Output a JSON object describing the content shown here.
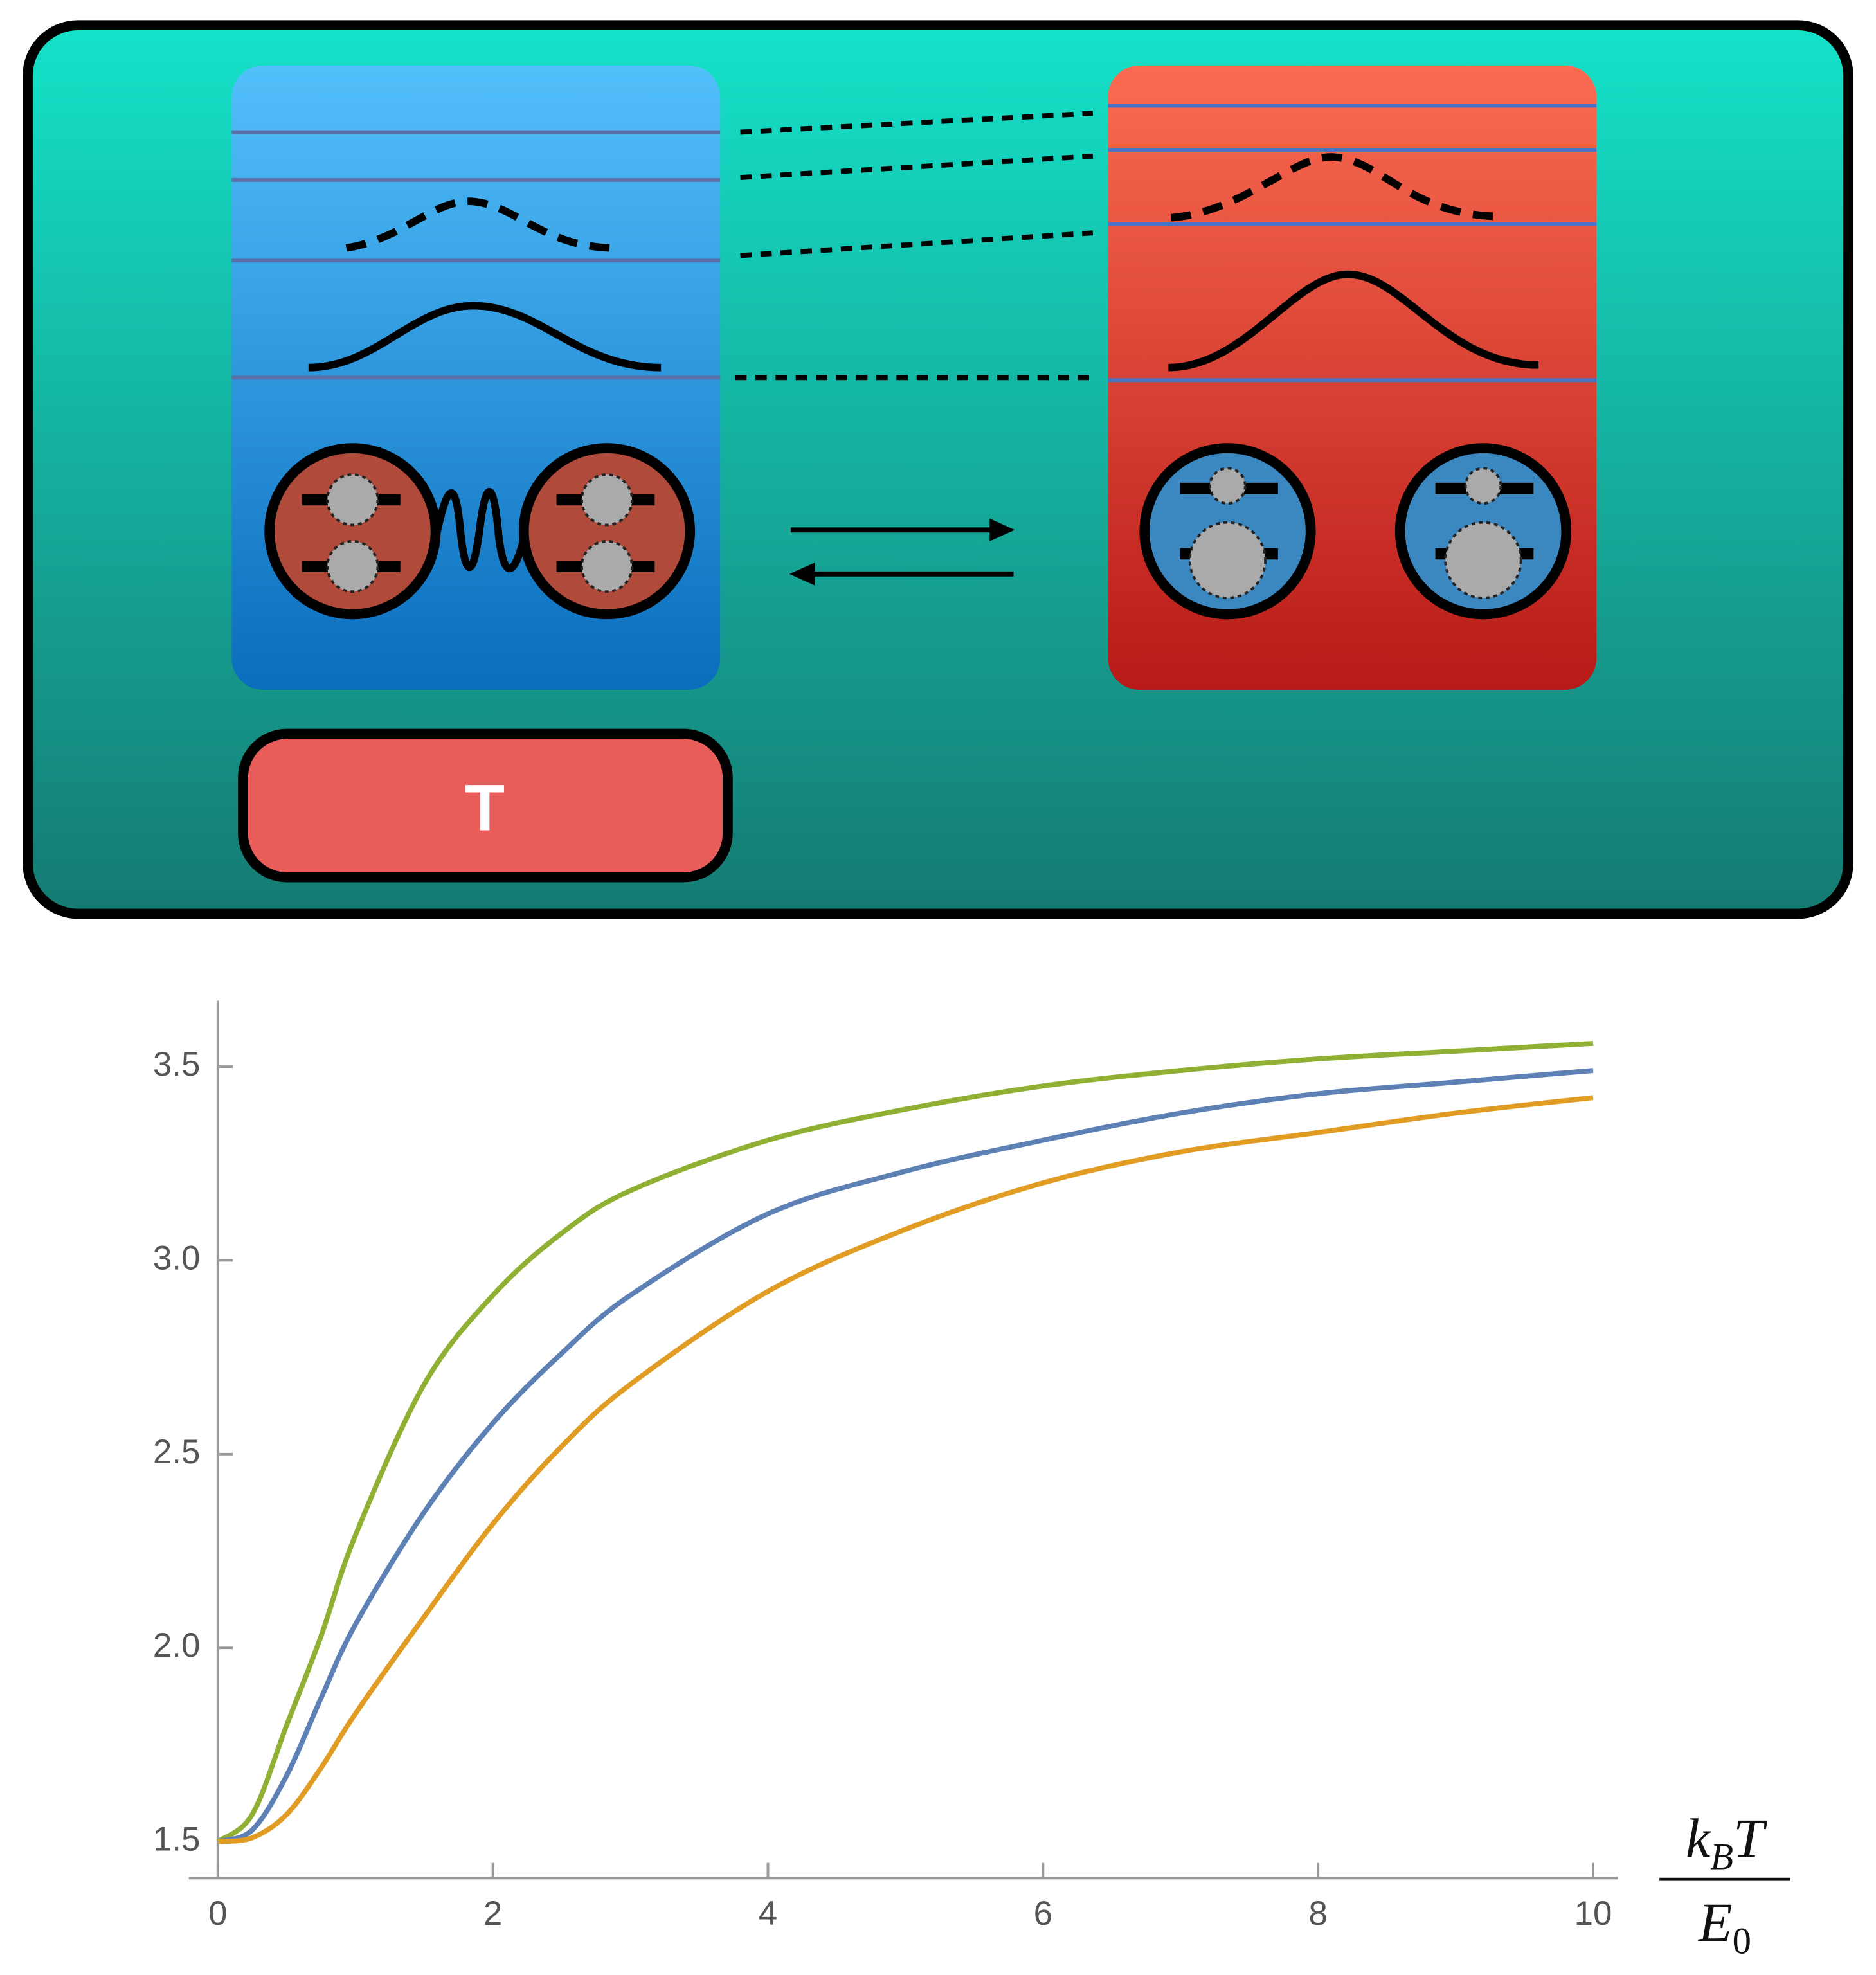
{
  "diagram": {
    "button_label": "T"
  },
  "chart_data": {
    "type": "line",
    "x_label": {
      "numerator": [
        "k",
        "B",
        "T"
      ],
      "denominator": [
        "E",
        "0"
      ]
    },
    "x": [
      0,
      0.25,
      0.5,
      0.75,
      1,
      1.5,
      2,
      2.5,
      3,
      4,
      5,
      6,
      7,
      8,
      9,
      10
    ],
    "series": [
      {
        "color": "#8fb032",
        "values": [
          1.5,
          1.57,
          1.8,
          2.03,
          2.29,
          2.68,
          2.91,
          3.07,
          3.18,
          3.31,
          3.39,
          3.45,
          3.49,
          3.52,
          3.54,
          3.56
        ]
      },
      {
        "color": "#5e81b5",
        "values": [
          1.5,
          1.53,
          1.67,
          1.87,
          2.06,
          2.35,
          2.58,
          2.76,
          2.91,
          3.12,
          3.23,
          3.31,
          3.38,
          3.43,
          3.46,
          3.49
        ]
      },
      {
        "color": "#e19c24",
        "values": [
          1.5,
          1.51,
          1.57,
          1.69,
          1.83,
          2.08,
          2.32,
          2.52,
          2.68,
          2.92,
          3.08,
          3.2,
          3.28,
          3.33,
          3.38,
          3.42
        ]
      }
    ],
    "xlim": [
      0,
      10.18
    ],
    "ylim": [
      1.406,
      3.67
    ],
    "xticks": [
      0,
      2,
      4,
      6,
      8,
      10
    ],
    "yticks": [
      1.5,
      {
        "value": 2,
        "label": "2.0"
      },
      2.5,
      {
        "value": 3,
        "label": "3.0"
      },
      3.5
    ]
  }
}
